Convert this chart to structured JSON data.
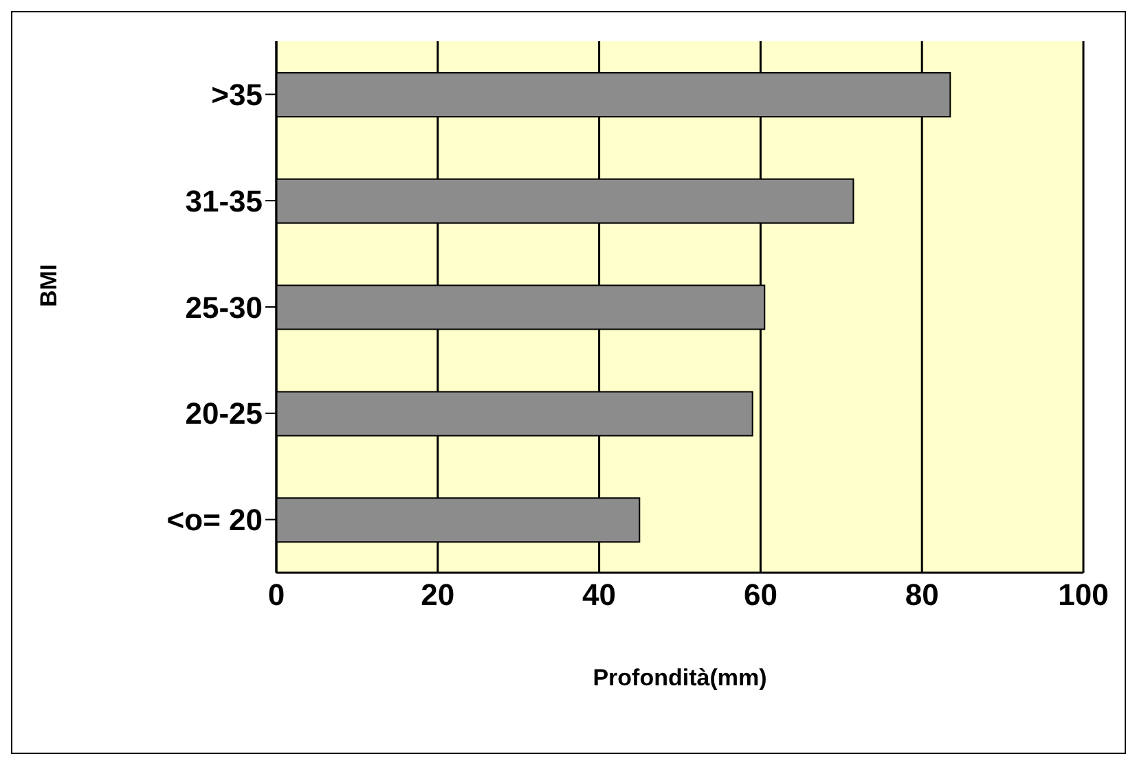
{
  "chart_data": {
    "type": "bar",
    "orientation": "horizontal",
    "categories": [
      ">35",
      "31-35",
      "25-30",
      "20-25",
      "<o= 20"
    ],
    "values": [
      83.5,
      71.5,
      60.5,
      59,
      45
    ],
    "color": "#8c8c8c",
    "xlim": [
      0,
      100
    ],
    "xticks": [
      0,
      20,
      40,
      60,
      80,
      100
    ],
    "xlabel": "Profondità(mm)",
    "ylabel": "BMI",
    "grid": "x"
  }
}
